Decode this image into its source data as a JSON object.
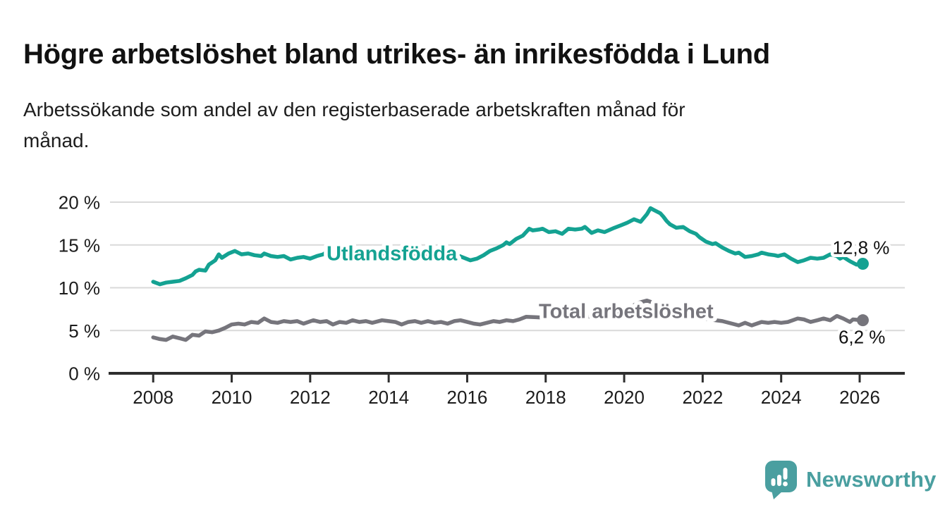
{
  "header": {
    "title": "Högre arbetslöshet bland utrikes- än inrikesfödda i Lund",
    "subtitle_line1": "Arbetssökande som andel av den registerbaserade arbetskraften månad för",
    "subtitle_line2": "månad."
  },
  "chart_data": {
    "type": "line",
    "title": "Högre arbetslöshet bland utrikes- än inrikesfödda i Lund",
    "subtitle": "Arbetssökande som andel av den registerbaserade arbetskraften månad för månad.",
    "xlabel": "",
    "ylabel": "",
    "grid": "horizontal",
    "legend_position": "inline-labels",
    "x_axis": {
      "range": [
        2006.9,
        2027.15
      ],
      "ticks": [
        2008,
        2010,
        2012,
        2014,
        2016,
        2018,
        2020,
        2022,
        2024,
        2026
      ],
      "tick_labels": [
        "2008",
        "2010",
        "2012",
        "2014",
        "2016",
        "2018",
        "2020",
        "2022",
        "2024",
        "2026"
      ]
    },
    "y_axis": {
      "range": [
        0,
        20
      ],
      "ticks": [
        0,
        5,
        10,
        15,
        20
      ],
      "tick_labels": [
        "0 %",
        "5 %",
        "10 %",
        "15 %",
        "20 %"
      ]
    },
    "series": [
      {
        "id": "utlandsfodda",
        "name": "Utlandsfödda",
        "color": "#14a292",
        "end_label": "12,8 %",
        "end_value": 12.8,
        "inline_label": {
          "x": 2014.08,
          "y": 14.05
        },
        "points": [
          [
            2008.0,
            10.7
          ],
          [
            2008.17,
            10.4
          ],
          [
            2008.33,
            10.6
          ],
          [
            2008.5,
            10.7
          ],
          [
            2008.67,
            10.8
          ],
          [
            2008.83,
            11.1
          ],
          [
            2009.0,
            11.5
          ],
          [
            2009.08,
            11.9
          ],
          [
            2009.17,
            12.1
          ],
          [
            2009.33,
            12.0
          ],
          [
            2009.42,
            12.7
          ],
          [
            2009.58,
            13.2
          ],
          [
            2009.67,
            13.9
          ],
          [
            2009.75,
            13.5
          ],
          [
            2009.92,
            14.0
          ],
          [
            2010.08,
            14.3
          ],
          [
            2010.25,
            13.9
          ],
          [
            2010.42,
            14.0
          ],
          [
            2010.58,
            13.8
          ],
          [
            2010.75,
            13.7
          ],
          [
            2010.83,
            14.0
          ],
          [
            2011.0,
            13.7
          ],
          [
            2011.17,
            13.6
          ],
          [
            2011.33,
            13.7
          ],
          [
            2011.5,
            13.3
          ],
          [
            2011.67,
            13.5
          ],
          [
            2011.83,
            13.6
          ],
          [
            2012.0,
            13.4
          ],
          [
            2012.17,
            13.7
          ],
          [
            2012.33,
            13.9
          ],
          [
            2012.5,
            14.4
          ],
          [
            2012.58,
            14.2
          ],
          [
            2012.75,
            13.9
          ],
          [
            2012.92,
            13.6
          ],
          [
            2013.08,
            13.7
          ],
          [
            2013.25,
            13.5
          ],
          [
            2013.5,
            13.6
          ],
          [
            2013.75,
            13.7
          ],
          [
            2014.0,
            13.6
          ],
          [
            2014.25,
            13.7
          ],
          [
            2014.5,
            13.6
          ],
          [
            2014.75,
            13.7
          ],
          [
            2015.0,
            13.6
          ],
          [
            2015.25,
            13.5
          ],
          [
            2015.5,
            13.6
          ],
          [
            2015.75,
            13.8
          ],
          [
            2015.92,
            13.5
          ],
          [
            2016.08,
            13.2
          ],
          [
            2016.25,
            13.4
          ],
          [
            2016.42,
            13.8
          ],
          [
            2016.58,
            14.3
          ],
          [
            2016.75,
            14.6
          ],
          [
            2016.92,
            15.0
          ],
          [
            2017.0,
            15.3
          ],
          [
            2017.08,
            15.1
          ],
          [
            2017.25,
            15.7
          ],
          [
            2017.42,
            16.1
          ],
          [
            2017.58,
            16.9
          ],
          [
            2017.67,
            16.7
          ],
          [
            2017.83,
            16.8
          ],
          [
            2017.92,
            16.9
          ],
          [
            2018.08,
            16.5
          ],
          [
            2018.25,
            16.6
          ],
          [
            2018.42,
            16.3
          ],
          [
            2018.58,
            16.9
          ],
          [
            2018.75,
            16.8
          ],
          [
            2018.92,
            16.9
          ],
          [
            2019.0,
            17.1
          ],
          [
            2019.17,
            16.4
          ],
          [
            2019.33,
            16.7
          ],
          [
            2019.5,
            16.5
          ],
          [
            2019.75,
            17.0
          ],
          [
            2019.92,
            17.3
          ],
          [
            2020.08,
            17.6
          ],
          [
            2020.25,
            18.0
          ],
          [
            2020.42,
            17.7
          ],
          [
            2020.58,
            18.6
          ],
          [
            2020.67,
            19.3
          ],
          [
            2020.75,
            19.1
          ],
          [
            2020.92,
            18.7
          ],
          [
            2021.0,
            18.3
          ],
          [
            2021.08,
            17.8
          ],
          [
            2021.17,
            17.4
          ],
          [
            2021.33,
            17.0
          ],
          [
            2021.5,
            17.1
          ],
          [
            2021.67,
            16.6
          ],
          [
            2021.83,
            16.3
          ],
          [
            2021.92,
            15.9
          ],
          [
            2022.08,
            15.4
          ],
          [
            2022.25,
            15.1
          ],
          [
            2022.33,
            15.2
          ],
          [
            2022.5,
            14.7
          ],
          [
            2022.67,
            14.3
          ],
          [
            2022.83,
            14.0
          ],
          [
            2022.92,
            14.1
          ],
          [
            2023.08,
            13.6
          ],
          [
            2023.25,
            13.7
          ],
          [
            2023.42,
            13.9
          ],
          [
            2023.5,
            14.1
          ],
          [
            2023.67,
            13.9
          ],
          [
            2023.83,
            13.8
          ],
          [
            2023.92,
            13.7
          ],
          [
            2024.08,
            13.9
          ],
          [
            2024.25,
            13.4
          ],
          [
            2024.42,
            13.0
          ],
          [
            2024.58,
            13.2
          ],
          [
            2024.75,
            13.5
          ],
          [
            2024.92,
            13.4
          ],
          [
            2025.08,
            13.5
          ],
          [
            2025.25,
            13.9
          ],
          [
            2025.42,
            13.7
          ],
          [
            2025.5,
            13.4
          ],
          [
            2025.58,
            13.6
          ],
          [
            2025.75,
            13.1
          ],
          [
            2025.92,
            12.7
          ],
          [
            2026.08,
            12.8
          ]
        ]
      },
      {
        "id": "total-arbetsloshet",
        "name": "Total arbetslöshet",
        "color": "#76757c",
        "end_label": "6,2 %",
        "end_value": 6.2,
        "inline_label": {
          "x": 2020.05,
          "y": 7.3
        },
        "points": [
          [
            2008.0,
            4.2
          ],
          [
            2008.17,
            4.0
          ],
          [
            2008.33,
            3.9
          ],
          [
            2008.5,
            4.3
          ],
          [
            2008.67,
            4.1
          ],
          [
            2008.83,
            3.9
          ],
          [
            2009.0,
            4.5
          ],
          [
            2009.17,
            4.4
          ],
          [
            2009.33,
            4.9
          ],
          [
            2009.5,
            4.8
          ],
          [
            2009.67,
            5.0
          ],
          [
            2009.83,
            5.3
          ],
          [
            2010.0,
            5.7
          ],
          [
            2010.17,
            5.8
          ],
          [
            2010.33,
            5.7
          ],
          [
            2010.5,
            6.0
          ],
          [
            2010.67,
            5.9
          ],
          [
            2010.83,
            6.4
          ],
          [
            2011.0,
            6.0
          ],
          [
            2011.17,
            5.9
          ],
          [
            2011.33,
            6.1
          ],
          [
            2011.5,
            6.0
          ],
          [
            2011.67,
            6.1
          ],
          [
            2011.83,
            5.8
          ],
          [
            2012.08,
            6.2
          ],
          [
            2012.25,
            6.0
          ],
          [
            2012.42,
            6.1
          ],
          [
            2012.58,
            5.7
          ],
          [
            2012.75,
            6.0
          ],
          [
            2012.92,
            5.9
          ],
          [
            2013.08,
            6.2
          ],
          [
            2013.25,
            6.0
          ],
          [
            2013.42,
            6.1
          ],
          [
            2013.58,
            5.9
          ],
          [
            2013.83,
            6.2
          ],
          [
            2014.0,
            6.1
          ],
          [
            2014.17,
            6.0
          ],
          [
            2014.33,
            5.7
          ],
          [
            2014.5,
            6.0
          ],
          [
            2014.67,
            6.1
          ],
          [
            2014.83,
            5.9
          ],
          [
            2015.0,
            6.1
          ],
          [
            2015.17,
            5.9
          ],
          [
            2015.33,
            6.0
          ],
          [
            2015.5,
            5.8
          ],
          [
            2015.67,
            6.1
          ],
          [
            2015.83,
            6.2
          ],
          [
            2016.0,
            6.0
          ],
          [
            2016.17,
            5.8
          ],
          [
            2016.33,
            5.7
          ],
          [
            2016.5,
            5.9
          ],
          [
            2016.67,
            6.1
          ],
          [
            2016.83,
            6.0
          ],
          [
            2017.0,
            6.2
          ],
          [
            2017.17,
            6.1
          ],
          [
            2017.33,
            6.3
          ],
          [
            2017.5,
            6.6
          ],
          [
            2018.0,
            6.5
          ],
          [
            2018.5,
            6.4
          ],
          [
            2019.0,
            6.6
          ],
          [
            2019.5,
            6.7
          ],
          [
            2020.0,
            7.2
          ],
          [
            2020.33,
            8.2
          ],
          [
            2020.58,
            8.5
          ],
          [
            2020.83,
            8.1
          ],
          [
            2021.0,
            7.8
          ],
          [
            2021.5,
            7.0
          ],
          [
            2022.0,
            6.4
          ],
          [
            2022.5,
            6.1
          ],
          [
            2022.75,
            5.8
          ],
          [
            2022.92,
            5.6
          ],
          [
            2023.08,
            5.9
          ],
          [
            2023.25,
            5.6
          ],
          [
            2023.5,
            6.0
          ],
          [
            2023.67,
            5.9
          ],
          [
            2023.83,
            6.0
          ],
          [
            2024.0,
            5.9
          ],
          [
            2024.17,
            6.0
          ],
          [
            2024.42,
            6.4
          ],
          [
            2024.58,
            6.3
          ],
          [
            2024.75,
            6.0
          ],
          [
            2024.92,
            6.2
          ],
          [
            2025.08,
            6.4
          ],
          [
            2025.25,
            6.2
          ],
          [
            2025.42,
            6.7
          ],
          [
            2025.58,
            6.4
          ],
          [
            2025.75,
            6.0
          ],
          [
            2025.83,
            6.3
          ],
          [
            2026.08,
            6.2
          ]
        ]
      }
    ]
  },
  "branding": {
    "logo_text": "Newsworthy",
    "logo_color": "#4a9fa0",
    "logo_icon": "bar-chart-speech-bubble-icon"
  },
  "style": {
    "accent_teal": "#14a292",
    "series_gray": "#76757c",
    "gridline_color": "#d9d9d9",
    "axis_color": "#2e2e2e"
  }
}
